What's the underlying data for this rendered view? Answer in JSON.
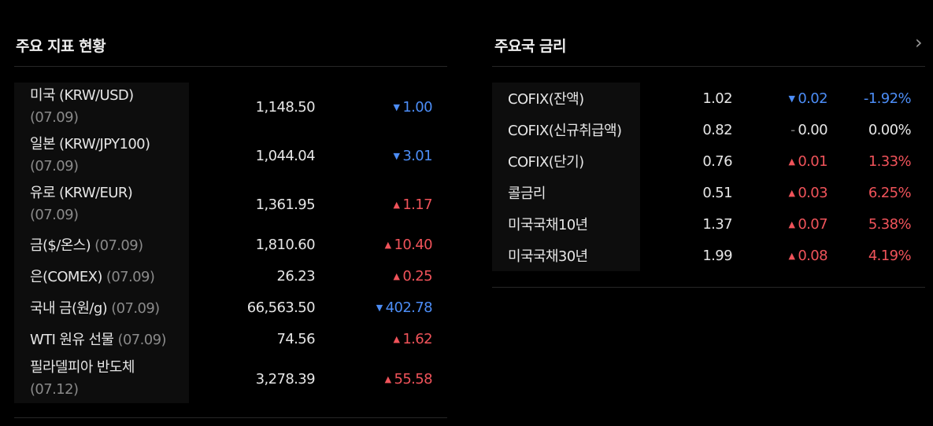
{
  "indicators": {
    "title": "주요 지표 현황",
    "rows": [
      {
        "name": "미국 (KRW/USD)",
        "date": "(07.09)",
        "value": "1,148.50",
        "arrow": "▼",
        "change": "1.00",
        "color": "#4c8df6",
        "layout": "two-line"
      },
      {
        "name": "일본 (KRW/JPY100)",
        "date": "(07.09)",
        "value": "1,044.04",
        "arrow": "▼",
        "change": "3.01",
        "color": "#4c8df6",
        "layout": "two-line"
      },
      {
        "name": "유로 (KRW/EUR)",
        "date": "(07.09)",
        "value": "1,361.95",
        "arrow": "▲",
        "change": "1.17",
        "color": "#f0535a",
        "layout": "two-line"
      },
      {
        "name": "금($/온스)",
        "date": "(07.09)",
        "value": "1,810.60",
        "arrow": "▲",
        "change": "10.40",
        "color": "#f0535a",
        "layout": "one-line"
      },
      {
        "name": "은(COMEX)",
        "date": "(07.09)",
        "value": "26.23",
        "arrow": "▲",
        "change": "0.25",
        "color": "#f0535a",
        "layout": "one-line"
      },
      {
        "name": "국내 금(원/g)",
        "date": "(07.09)",
        "value": "66,563.50",
        "arrow": "▼",
        "change": "402.78",
        "color": "#4c8df6",
        "layout": "one-line"
      },
      {
        "name": "WTI 원유 선물",
        "date": "(07.09)",
        "value": "74.56",
        "arrow": "▲",
        "change": "1.62",
        "color": "#f0535a",
        "layout": "one-line"
      },
      {
        "name": "필라델피아 반도체",
        "date": "(07.12)",
        "value": "3,278.39",
        "arrow": "▲",
        "change": "55.58",
        "color": "#f0535a",
        "layout": "two-line"
      }
    ]
  },
  "rates": {
    "title": "주요국 금리",
    "more": "›",
    "rows": [
      {
        "name": "COFIX(잔액)",
        "value": "1.02",
        "arrow": "▼",
        "change": "0.02",
        "rate": "-1.92%",
        "color": "#4c8df6"
      },
      {
        "name": "COFIX(신규취급액)",
        "value": "0.82",
        "arrow": "–",
        "change": "0.00",
        "rate": "0.00%",
        "color": "#e6e6e6"
      },
      {
        "name": "COFIX(단기)",
        "value": "0.76",
        "arrow": "▲",
        "change": "0.01",
        "rate": "1.33%",
        "color": "#f0535a"
      },
      {
        "name": "콜금리",
        "value": "0.51",
        "arrow": "▲",
        "change": "0.03",
        "rate": "6.25%",
        "color": "#f0535a"
      },
      {
        "name": "미국국채10년",
        "value": "1.37",
        "arrow": "▲",
        "change": "0.07",
        "rate": "5.38%",
        "color": "#f0535a"
      },
      {
        "name": "미국국채30년",
        "value": "1.99",
        "arrow": "▲",
        "change": "0.08",
        "rate": "4.19%",
        "color": "#f0535a"
      }
    ]
  }
}
